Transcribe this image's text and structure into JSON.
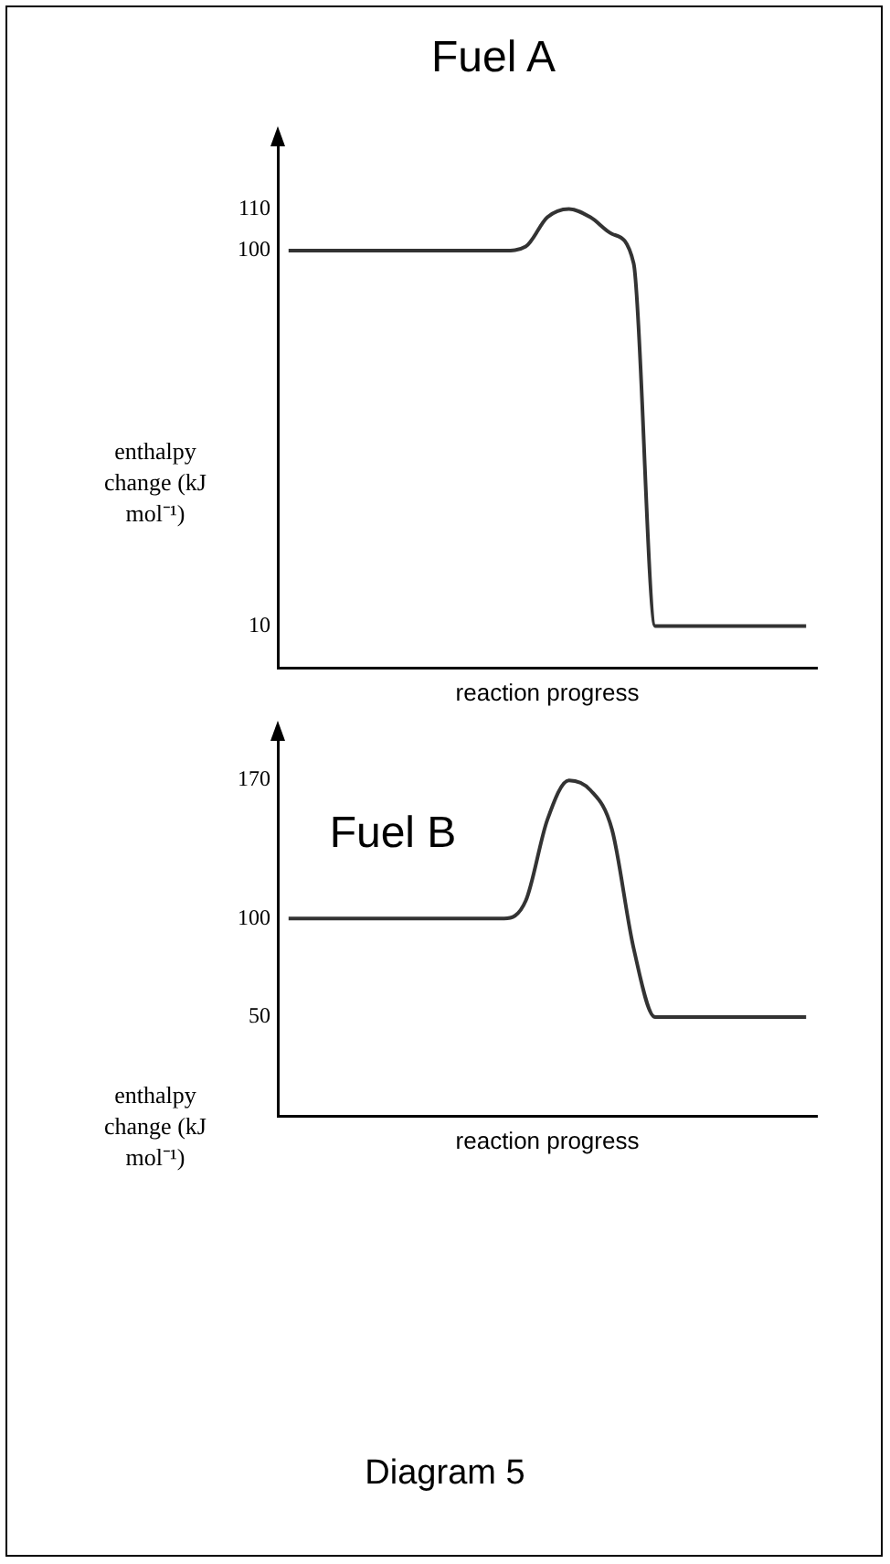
{
  "chart_data": [
    {
      "type": "line",
      "title": "Fuel A",
      "xlabel": "reaction progress",
      "ylabel": "enthalpy change (kJ mol⁻¹)",
      "categories": [
        null,
        null,
        null,
        null,
        null,
        null,
        null,
        null,
        null,
        null,
        null,
        null,
        null,
        null,
        null,
        null,
        null,
        null,
        null,
        null,
        null,
        null,
        null,
        null,
        null
      ],
      "values": [
        100,
        100,
        100,
        100,
        100,
        100,
        100,
        100,
        100,
        100,
        100,
        101,
        108,
        110,
        108,
        104,
        97,
        10,
        10,
        10,
        10,
        10,
        10,
        10,
        10
      ],
      "color": "#333333",
      "ylim": [
        0,
        125
      ],
      "yticks": [
        10,
        100,
        110
      ],
      "grid": false,
      "legend": false,
      "marker": "none",
      "tick_labels": "y"
    },
    {
      "type": "line",
      "title": "Fuel B",
      "xlabel": "reaction progress",
      "ylabel": "enthalpy change (kJ mol⁻¹)",
      "categories": [
        null,
        null,
        null,
        null,
        null,
        null,
        null,
        null,
        null,
        null,
        null,
        null,
        null,
        null,
        null,
        null,
        null,
        null,
        null,
        null,
        null,
        null,
        null,
        null,
        null
      ],
      "values": [
        100,
        100,
        100,
        100,
        100,
        100,
        100,
        100,
        100,
        100,
        100,
        109,
        150,
        170,
        165,
        145,
        85,
        50,
        50,
        50,
        50,
        50,
        50,
        50,
        50
      ],
      "color": "#333333",
      "ylim": [
        0,
        190
      ],
      "yticks": [
        50,
        100,
        170
      ],
      "grid": false,
      "legend": false,
      "marker": "none",
      "tick_labels": "y",
      "annotations": [
        "Diagram 5"
      ]
    }
  ]
}
